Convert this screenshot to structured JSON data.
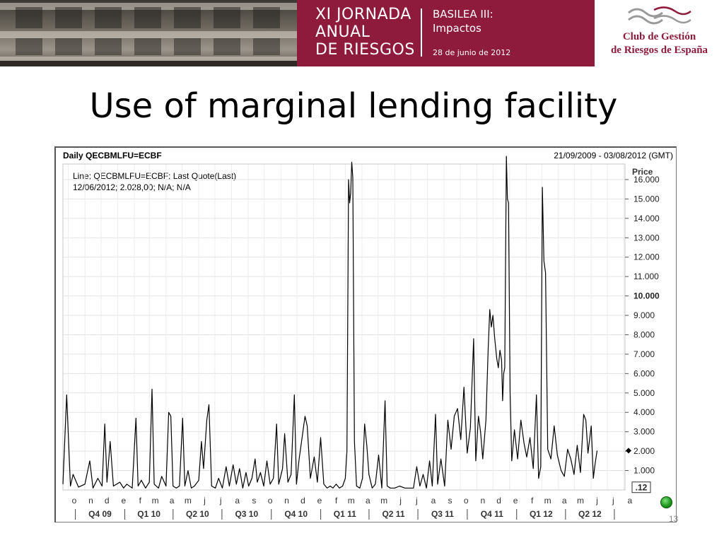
{
  "banner": {
    "event_title_lines": [
      "XI JORNADA",
      "ANUAL",
      "DE RIESGOS"
    ],
    "subtitle_lines": [
      "BASILEA III:",
      "Impactos"
    ],
    "date": "28 de junio de 2012",
    "org_line1": "Club de Gestión",
    "org_line2": "de Riesgos de España",
    "colors": {
      "crimson": "#8e1a3c"
    }
  },
  "slide": {
    "title": "Use of marginal lending facility",
    "page_number": "13"
  },
  "chart_data": {
    "type": "line",
    "instrument_label": "Daily QECBMLFU=ECBF",
    "date_range": "21/09/2009 - 03/08/2012 (GMT)",
    "legend_lines": [
      "Line; QECBMLFU=ECBF; Last Quote(Last)",
      "12/06/2012; 2.028,00; N/A; N/A"
    ],
    "ylabel": "Price",
    "ylim": [
      0,
      16800
    ],
    "y_ticks": [
      {
        "value": 1000,
        "label": "1.000",
        "bold": false
      },
      {
        "value": 2000,
        "label": "2.000",
        "bold": false
      },
      {
        "value": 3000,
        "label": "3.000",
        "bold": false
      },
      {
        "value": 4000,
        "label": "4.000",
        "bold": false
      },
      {
        "value": 5000,
        "label": "5.000",
        "bold": false
      },
      {
        "value": 6000,
        "label": "6.000",
        "bold": false
      },
      {
        "value": 7000,
        "label": "7.000",
        "bold": false
      },
      {
        "value": 8000,
        "label": "8.000",
        "bold": false
      },
      {
        "value": 9000,
        "label": "9.000",
        "bold": false
      },
      {
        "value": 10000,
        "label": "10.000",
        "bold": true
      },
      {
        "value": 11000,
        "label": "11.000",
        "bold": false
      },
      {
        "value": 12000,
        "label": "12.000",
        "bold": false
      },
      {
        "value": 13000,
        "label": "13.000",
        "bold": false
      },
      {
        "value": 14000,
        "label": "14.000",
        "bold": false
      },
      {
        "value": 15000,
        "label": "15.000",
        "bold": false
      },
      {
        "value": 16000,
        "label": "16.000",
        "bold": false
      }
    ],
    "current_value_label": ".12",
    "current_value": 120,
    "x_months": [
      "o",
      "n",
      "d",
      "e",
      "f",
      "m",
      "a",
      "m",
      "j",
      "j",
      "a",
      "s",
      "o",
      "n",
      "d",
      "e",
      "f",
      "m",
      "a",
      "m",
      "j",
      "j",
      "a",
      "s",
      "o",
      "n",
      "d",
      "e",
      "f",
      "m",
      "a",
      "m",
      "j",
      "j",
      "a"
    ],
    "x_quarters": [
      "Q4 09",
      "Q1 10",
      "Q2 10",
      "Q3 10",
      "Q4 10",
      "Q1 11",
      "Q2 11",
      "Q3 11",
      "Q4 11",
      "Q1 12",
      "Q2 12"
    ],
    "x_start": "2009-10",
    "x_end": "2012-08",
    "grid": true,
    "series": [
      {
        "values": [
          [
            "2009-09-21",
            300
          ],
          [
            "2009-09-28",
            4900
          ],
          [
            "2009-10-05",
            200
          ],
          [
            "2009-10-10",
            800
          ],
          [
            "2009-10-20",
            150
          ],
          [
            "2009-11-01",
            300
          ],
          [
            "2009-11-10",
            1500
          ],
          [
            "2009-11-16",
            100
          ],
          [
            "2009-11-25",
            600
          ],
          [
            "2009-12-03",
            200
          ],
          [
            "2009-12-08",
            3400
          ],
          [
            "2009-12-12",
            400
          ],
          [
            "2009-12-18",
            2500
          ],
          [
            "2009-12-24",
            200
          ],
          [
            "2010-01-05",
            400
          ],
          [
            "2010-01-12",
            100
          ],
          [
            "2010-01-18",
            300
          ],
          [
            "2010-01-28",
            100
          ],
          [
            "2010-02-04",
            3700
          ],
          [
            "2010-02-08",
            200
          ],
          [
            "2010-02-14",
            500
          ],
          [
            "2010-02-22",
            100
          ],
          [
            "2010-03-01",
            400
          ],
          [
            "2010-03-06",
            5200
          ],
          [
            "2010-03-10",
            300
          ],
          [
            "2010-03-18",
            100
          ],
          [
            "2010-03-24",
            700
          ],
          [
            "2010-04-01",
            200
          ],
          [
            "2010-04-06",
            4000
          ],
          [
            "2010-04-10",
            3800
          ],
          [
            "2010-04-14",
            200
          ],
          [
            "2010-04-20",
            100
          ],
          [
            "2010-04-26",
            200
          ],
          [
            "2010-05-02",
            3700
          ],
          [
            "2010-05-06",
            200
          ],
          [
            "2010-05-12",
            1000
          ],
          [
            "2010-05-18",
            100
          ],
          [
            "2010-05-24",
            200
          ],
          [
            "2010-06-01",
            500
          ],
          [
            "2010-06-06",
            2500
          ],
          [
            "2010-06-10",
            1100
          ],
          [
            "2010-06-16",
            3600
          ],
          [
            "2010-06-20",
            4400
          ],
          [
            "2010-06-25",
            200
          ],
          [
            "2010-07-02",
            100
          ],
          [
            "2010-07-08",
            600
          ],
          [
            "2010-07-15",
            100
          ],
          [
            "2010-07-22",
            1200
          ],
          [
            "2010-07-28",
            200
          ],
          [
            "2010-08-04",
            1300
          ],
          [
            "2010-08-10",
            300
          ],
          [
            "2010-08-16",
            1100
          ],
          [
            "2010-08-22",
            100
          ],
          [
            "2010-08-28",
            900
          ],
          [
            "2010-09-02",
            200
          ],
          [
            "2010-09-08",
            600
          ],
          [
            "2010-09-14",
            1600
          ],
          [
            "2010-09-18",
            400
          ],
          [
            "2010-09-24",
            900
          ],
          [
            "2010-09-30",
            200
          ],
          [
            "2010-10-06",
            1500
          ],
          [
            "2010-10-12",
            300
          ],
          [
            "2010-10-18",
            600
          ],
          [
            "2010-10-24",
            3400
          ],
          [
            "2010-10-28",
            300
          ],
          [
            "2010-11-04",
            1100
          ],
          [
            "2010-11-08",
            2900
          ],
          [
            "2010-11-14",
            400
          ],
          [
            "2010-11-20",
            800
          ],
          [
            "2010-11-26",
            4900
          ],
          [
            "2010-11-30",
            300
          ],
          [
            "2010-12-05",
            1600
          ],
          [
            "2010-12-10",
            2600
          ],
          [
            "2010-12-16",
            3800
          ],
          [
            "2010-12-20",
            3300
          ],
          [
            "2010-12-26",
            600
          ],
          [
            "2011-01-02",
            1700
          ],
          [
            "2011-01-08",
            400
          ],
          [
            "2011-01-14",
            2700
          ],
          [
            "2011-01-20",
            300
          ],
          [
            "2011-01-26",
            100
          ],
          [
            "2011-02-01",
            200
          ],
          [
            "2011-02-06",
            100
          ],
          [
            "2011-02-12",
            300
          ],
          [
            "2011-02-18",
            100
          ],
          [
            "2011-02-24",
            200
          ],
          [
            "2011-03-01",
            600
          ],
          [
            "2011-03-04",
            2000
          ],
          [
            "2011-03-07",
            16000
          ],
          [
            "2011-03-09",
            14800
          ],
          [
            "2011-03-11",
            15300
          ],
          [
            "2011-03-13",
            16900
          ],
          [
            "2011-03-15",
            16100
          ],
          [
            "2011-03-18",
            2500
          ],
          [
            "2011-03-22",
            200
          ],
          [
            "2011-03-28",
            100
          ],
          [
            "2011-04-02",
            600
          ],
          [
            "2011-04-06",
            3400
          ],
          [
            "2011-04-10",
            2300
          ],
          [
            "2011-04-14",
            800
          ],
          [
            "2011-04-20",
            100
          ],
          [
            "2011-04-26",
            300
          ],
          [
            "2011-05-02",
            1800
          ],
          [
            "2011-05-08",
            100
          ],
          [
            "2011-05-14",
            4600
          ],
          [
            "2011-05-18",
            200
          ],
          [
            "2011-05-24",
            100
          ],
          [
            "2011-06-01",
            100
          ],
          [
            "2011-06-10",
            200
          ],
          [
            "2011-06-20",
            100
          ],
          [
            "2011-06-28",
            100
          ],
          [
            "2011-07-06",
            100
          ],
          [
            "2011-07-12",
            1200
          ],
          [
            "2011-07-18",
            200
          ],
          [
            "2011-07-24",
            800
          ],
          [
            "2011-07-30",
            100
          ],
          [
            "2011-08-05",
            1500
          ],
          [
            "2011-08-10",
            200
          ],
          [
            "2011-08-16",
            3900
          ],
          [
            "2011-08-20",
            300
          ],
          [
            "2011-08-26",
            1600
          ],
          [
            "2011-09-02",
            200
          ],
          [
            "2011-09-08",
            3600
          ],
          [
            "2011-09-14",
            2100
          ],
          [
            "2011-09-20",
            3800
          ],
          [
            "2011-09-26",
            4200
          ],
          [
            "2011-10-02",
            2600
          ],
          [
            "2011-10-08",
            5300
          ],
          [
            "2011-10-14",
            1900
          ],
          [
            "2011-10-20",
            3200
          ],
          [
            "2011-10-26",
            7800
          ],
          [
            "2011-10-30",
            1500
          ],
          [
            "2011-11-04",
            3800
          ],
          [
            "2011-11-08",
            3000
          ],
          [
            "2011-11-12",
            1600
          ],
          [
            "2011-11-18",
            3600
          ],
          [
            "2011-11-22",
            7200
          ],
          [
            "2011-11-25",
            9300
          ],
          [
            "2011-11-28",
            8400
          ],
          [
            "2011-12-01",
            9000
          ],
          [
            "2011-12-04",
            7900
          ],
          [
            "2011-12-08",
            6800
          ],
          [
            "2011-12-11",
            6300
          ],
          [
            "2011-12-14",
            7200
          ],
          [
            "2011-12-17",
            6700
          ],
          [
            "2011-12-19",
            4600
          ],
          [
            "2011-12-21",
            6000
          ],
          [
            "2011-12-23",
            6300
          ],
          [
            "2011-12-26",
            17200
          ],
          [
            "2011-12-28",
            15000
          ],
          [
            "2011-12-30",
            14800
          ],
          [
            "2012-01-02",
            5000
          ],
          [
            "2012-01-05",
            1500
          ],
          [
            "2012-01-10",
            3100
          ],
          [
            "2012-01-16",
            1600
          ],
          [
            "2012-01-22",
            3600
          ],
          [
            "2012-01-28",
            2400
          ],
          [
            "2012-02-02",
            1700
          ],
          [
            "2012-02-08",
            2700
          ],
          [
            "2012-02-14",
            1100
          ],
          [
            "2012-02-20",
            4900
          ],
          [
            "2012-02-24",
            600
          ],
          [
            "2012-02-28",
            1200
          ],
          [
            "2012-03-02",
            15600
          ],
          [
            "2012-03-05",
            11800
          ],
          [
            "2012-03-08",
            11200
          ],
          [
            "2012-03-12",
            2100
          ],
          [
            "2012-03-18",
            1600
          ],
          [
            "2012-03-24",
            3300
          ],
          [
            "2012-03-30",
            1800
          ],
          [
            "2012-04-06",
            1000
          ],
          [
            "2012-04-12",
            700
          ],
          [
            "2012-04-18",
            2100
          ],
          [
            "2012-04-24",
            1600
          ],
          [
            "2012-04-30",
            800
          ],
          [
            "2012-05-06",
            2300
          ],
          [
            "2012-05-12",
            900
          ],
          [
            "2012-05-18",
            3900
          ],
          [
            "2012-05-22",
            3600
          ],
          [
            "2012-05-26",
            1900
          ],
          [
            "2012-06-01",
            3300
          ],
          [
            "2012-06-05",
            600
          ],
          [
            "2012-06-08",
            1300
          ],
          [
            "2012-06-12",
            2028
          ]
        ]
      }
    ]
  }
}
